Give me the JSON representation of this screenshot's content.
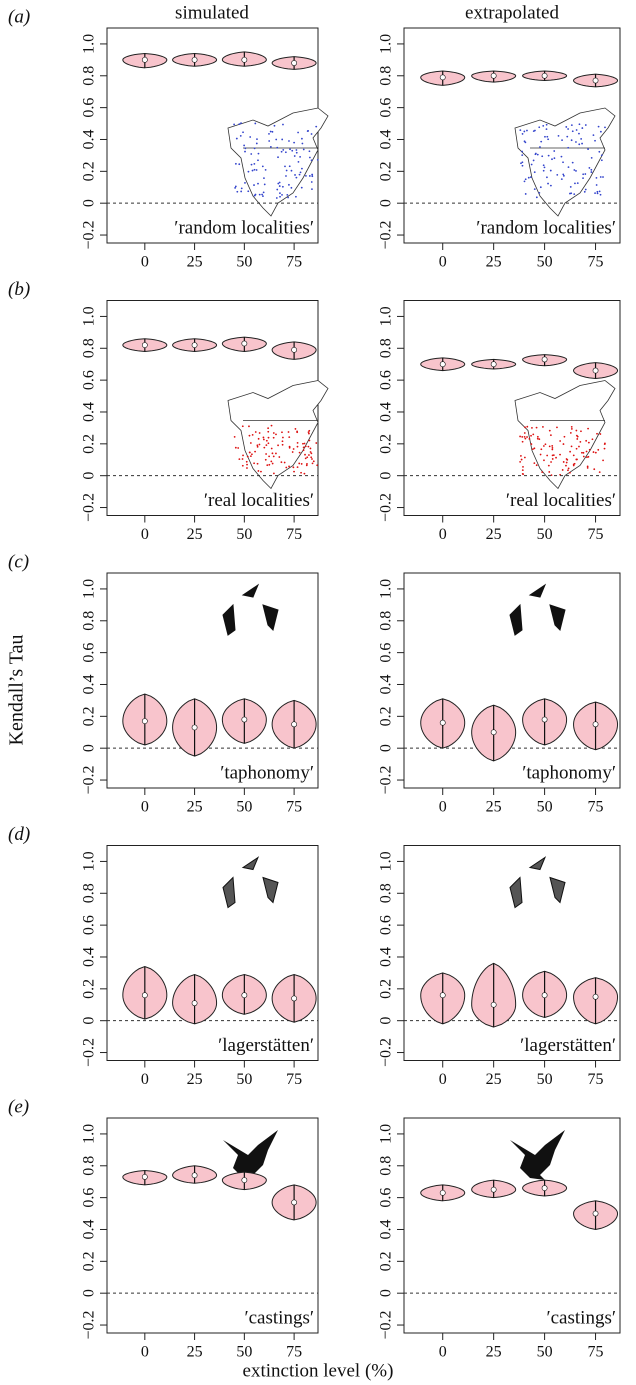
{
  "column_titles": [
    "simulated",
    "extrapolated"
  ],
  "ylabel": "Kendall’s Tau",
  "xlabel": "extinction level (%)",
  "chart_data": [
    {
      "type": "violin",
      "panel_label": "(a)",
      "annotation": "′random localities′",
      "x": [
        0,
        25,
        50,
        75
      ],
      "values": [
        0.9,
        0.9,
        0.9,
        0.88
      ],
      "low": [
        0.85,
        0.86,
        0.86,
        0.84
      ],
      "high": [
        0.94,
        0.94,
        0.95,
        0.92
      ],
      "color": "#f8c4cc",
      "hline": 0,
      "xlim": [
        -19,
        87
      ],
      "xticks": [
        0,
        25,
        50,
        75
      ],
      "ylim": [
        -0.25,
        1.1
      ],
      "yticks": [
        {
          "value": -0.2,
          "label": "−0.2"
        },
        0,
        0.2,
        0.4,
        0.6,
        0.8,
        {
          "value": 1,
          "label": "1.0"
        }
      ]
    },
    {
      "type": "violin",
      "annotation": "′random localities′",
      "x": [
        0,
        25,
        50,
        75
      ],
      "values": [
        0.79,
        0.8,
        0.8,
        0.77
      ],
      "low": [
        0.74,
        0.76,
        0.77,
        0.73
      ],
      "high": [
        0.83,
        0.83,
        0.83,
        0.81
      ],
      "color": "#f8c4cc",
      "hline": 0,
      "xlim": [
        -19,
        87
      ],
      "xticks": [
        0,
        25,
        50,
        75
      ],
      "ylim": [
        -0.25,
        1.1
      ],
      "yticks": [
        {
          "value": -0.2,
          "label": "−0.2"
        },
        0,
        0.2,
        0.4,
        0.6,
        0.8,
        {
          "value": 1,
          "label": "1.0"
        }
      ]
    },
    {
      "type": "violin",
      "panel_label": "(b)",
      "annotation": "′real localities′",
      "x": [
        0,
        25,
        50,
        75
      ],
      "values": [
        0.82,
        0.82,
        0.83,
        0.79
      ],
      "low": [
        0.78,
        0.78,
        0.78,
        0.73
      ],
      "high": [
        0.86,
        0.86,
        0.87,
        0.84
      ],
      "color": "#f8c4cc",
      "hline": 0,
      "xlim": [
        -19,
        87
      ],
      "xticks": [
        0,
        25,
        50,
        75
      ],
      "ylim": [
        -0.25,
        1.1
      ],
      "yticks": [
        {
          "value": -0.2,
          "label": "−0.2"
        },
        0,
        0.2,
        0.4,
        0.6,
        0.8,
        {
          "value": 1,
          "label": "1.0"
        }
      ]
    },
    {
      "type": "violin",
      "annotation": "′real localities′",
      "x": [
        0,
        25,
        50,
        75
      ],
      "values": [
        0.7,
        0.7,
        0.73,
        0.66
      ],
      "low": [
        0.66,
        0.67,
        0.69,
        0.61
      ],
      "high": [
        0.74,
        0.73,
        0.76,
        0.71
      ],
      "color": "#f8c4cc",
      "hline": 0,
      "xlim": [
        -19,
        87
      ],
      "xticks": [
        0,
        25,
        50,
        75
      ],
      "ylim": [
        -0.25,
        1.1
      ],
      "yticks": [
        {
          "value": -0.2,
          "label": "−0.2"
        },
        0,
        0.2,
        0.4,
        0.6,
        0.8,
        {
          "value": 1,
          "label": "1.0"
        }
      ]
    },
    {
      "type": "violin",
      "panel_label": "(c)",
      "annotation": "′taphonomy′",
      "x": [
        0,
        25,
        50,
        75
      ],
      "values": [
        0.17,
        0.13,
        0.18,
        0.15
      ],
      "low": [
        0.02,
        -0.05,
        0.03,
        0.0
      ],
      "high": [
        0.34,
        0.31,
        0.31,
        0.3
      ],
      "color": "#f8c4cc",
      "hline": 0,
      "xlim": [
        -19,
        87
      ],
      "xticks": [
        0,
        25,
        50,
        75
      ],
      "ylim": [
        -0.25,
        1.1
      ],
      "yticks": [
        {
          "value": -0.2,
          "label": "−0.2"
        },
        0,
        0.2,
        0.4,
        0.6,
        0.8,
        {
          "value": 1,
          "label": "1.0"
        }
      ]
    },
    {
      "type": "violin",
      "annotation": "′taphonomy′",
      "x": [
        0,
        25,
        50,
        75
      ],
      "values": [
        0.16,
        0.1,
        0.18,
        0.15
      ],
      "low": [
        0.0,
        -0.08,
        0.02,
        -0.01
      ],
      "high": [
        0.31,
        0.27,
        0.31,
        0.29
      ],
      "color": "#f8c4cc",
      "hline": 0,
      "xlim": [
        -19,
        87
      ],
      "xticks": [
        0,
        25,
        50,
        75
      ],
      "ylim": [
        -0.25,
        1.1
      ],
      "yticks": [
        {
          "value": -0.2,
          "label": "−0.2"
        },
        0,
        0.2,
        0.4,
        0.6,
        0.8,
        {
          "value": 1,
          "label": "1.0"
        }
      ]
    },
    {
      "type": "violin",
      "panel_label": "(d)",
      "annotation": "′lagerstätten′",
      "x": [
        0,
        25,
        50,
        75
      ],
      "values": [
        0.16,
        0.11,
        0.16,
        0.14
      ],
      "low": [
        0.01,
        -0.02,
        0.04,
        -0.01
      ],
      "high": [
        0.34,
        0.29,
        0.29,
        0.29
      ],
      "color": "#f8c4cc",
      "hline": 0,
      "xlim": [
        -19,
        87
      ],
      "xticks": [
        0,
        25,
        50,
        75
      ],
      "ylim": [
        -0.25,
        1.1
      ],
      "yticks": [
        {
          "value": -0.2,
          "label": "−0.2"
        },
        0,
        0.2,
        0.4,
        0.6,
        0.8,
        {
          "value": 1,
          "label": "1.0"
        }
      ]
    },
    {
      "type": "violin",
      "annotation": "′lagerstätten′",
      "x": [
        0,
        25,
        50,
        75
      ],
      "values": [
        0.16,
        0.1,
        0.16,
        0.15
      ],
      "low": [
        -0.02,
        -0.04,
        0.02,
        -0.02
      ],
      "high": [
        0.3,
        0.36,
        0.31,
        0.27
      ],
      "color": "#f8c4cc",
      "hline": 0,
      "xlim": [
        -19,
        87
      ],
      "xticks": [
        0,
        25,
        50,
        75
      ],
      "ylim": [
        -0.25,
        1.1
      ],
      "yticks": [
        {
          "value": -0.2,
          "label": "−0.2"
        },
        0,
        0.2,
        0.4,
        0.6,
        0.8,
        {
          "value": 1,
          "label": "1.0"
        }
      ]
    },
    {
      "type": "violin",
      "panel_label": "(e)",
      "annotation": "′castings′",
      "x": [
        0,
        25,
        50,
        75
      ],
      "values": [
        0.73,
        0.74,
        0.71,
        0.57
      ],
      "low": [
        0.68,
        0.69,
        0.65,
        0.46
      ],
      "high": [
        0.77,
        0.8,
        0.76,
        0.68
      ],
      "color": "#f8c4cc",
      "hline": 0,
      "xlim": [
        -19,
        87
      ],
      "xticks": [
        0,
        25,
        50,
        75
      ],
      "ylim": [
        -0.25,
        1.1
      ],
      "yticks": [
        {
          "value": -0.2,
          "label": "−0.2"
        },
        0,
        0.2,
        0.4,
        0.6,
        0.8,
        {
          "value": 1,
          "label": "1.0"
        }
      ]
    },
    {
      "type": "violin",
      "annotation": "′castings′",
      "x": [
        0,
        25,
        50,
        75
      ],
      "values": [
        0.63,
        0.65,
        0.66,
        0.5
      ],
      "low": [
        0.58,
        0.6,
        0.61,
        0.4
      ],
      "high": [
        0.68,
        0.71,
        0.71,
        0.58
      ],
      "color": "#f8c4cc",
      "hline": 0,
      "xlim": [
        -19,
        87
      ],
      "xticks": [
        0,
        25,
        50,
        75
      ],
      "ylim": [
        -0.25,
        1.1
      ],
      "yticks": [
        {
          "value": -0.2,
          "label": "−0.2"
        },
        0,
        0.2,
        0.4,
        0.6,
        0.8,
        {
          "value": 1,
          "label": "1.0"
        }
      ]
    }
  ]
}
